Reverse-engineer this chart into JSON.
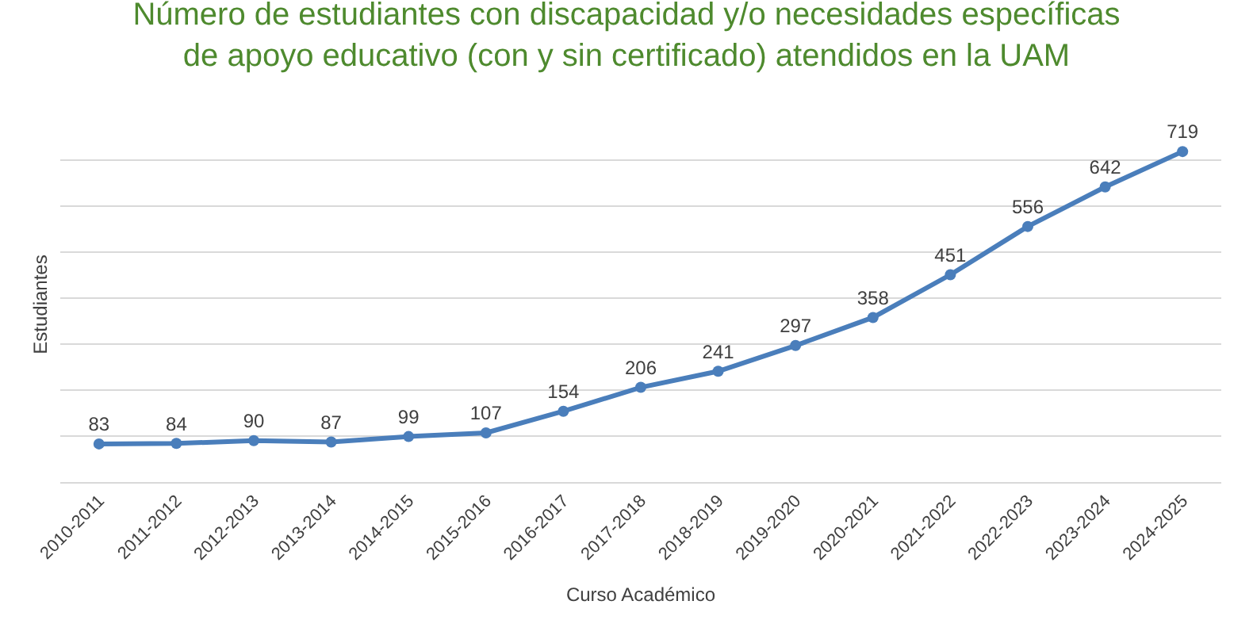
{
  "chart_data": {
    "type": "line",
    "title": "Número de estudiantes con discapacidad y/o necesidades específicas\nde apoyo educativo (con y sin certificado) atendidos en la UAM",
    "xlabel": "Curso Académico",
    "ylabel": "Estudiantes",
    "categories": [
      "2010-2011",
      "2011-2012",
      "2012-2013",
      "2013-2014",
      "2014-2015",
      "2015-2016",
      "2016-2017",
      "2017-2018",
      "2018-2019",
      "2019-2020",
      "2020-2021",
      "2021-2022",
      "2022-2023",
      "2023-2024",
      "2024-2025"
    ],
    "series": [
      {
        "color": "#4a7ebb",
        "values": [
          83,
          84,
          90,
          87,
          99,
          107,
          154,
          206,
          241,
          297,
          358,
          451,
          556,
          642,
          719
        ]
      }
    ],
    "yticks": [
      {
        "value": 0,
        "label": null
      },
      {
        "value": 100,
        "label": null
      },
      {
        "value": 200,
        "label": null
      },
      {
        "value": 300,
        "label": null
      },
      {
        "value": 400,
        "label": null
      },
      {
        "value": 500,
        "label": null
      },
      {
        "value": 600,
        "label": null
      },
      {
        "value": 700,
        "label": null
      }
    ],
    "tick_labels": "x",
    "grid": "y",
    "marker": "circle",
    "line_style": "solid",
    "data_labels": true
  }
}
